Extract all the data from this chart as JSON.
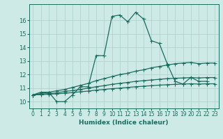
{
  "xlabel": "Humidex (Indice chaleur)",
  "bg_color": "#ceeae7",
  "grid_color": "#b0d4d0",
  "line_color": "#1a6b5e",
  "xlim": [
    -0.5,
    23.5
  ],
  "ylim": [
    9.5,
    17.2
  ],
  "xticks": [
    0,
    1,
    2,
    3,
    4,
    5,
    6,
    7,
    8,
    9,
    10,
    11,
    12,
    13,
    14,
    15,
    16,
    17,
    18,
    19,
    20,
    21,
    22,
    23
  ],
  "yticks": [
    10,
    11,
    12,
    13,
    14,
    15,
    16
  ],
  "line1_x": [
    0,
    1,
    2,
    3,
    4,
    5,
    6,
    7,
    8,
    9,
    10,
    11,
    12,
    13,
    14,
    15,
    16,
    17,
    18,
    19,
    20,
    21,
    22
  ],
  "line1_y": [
    10.5,
    10.7,
    10.7,
    10.0,
    10.0,
    10.5,
    11.1,
    11.1,
    13.4,
    13.4,
    16.3,
    16.4,
    15.9,
    16.6,
    16.1,
    14.5,
    14.3,
    12.8,
    11.5,
    11.3,
    11.8,
    11.5,
    11.5
  ],
  "line2_x": [
    0,
    1,
    2,
    3,
    4,
    5,
    6,
    7,
    8,
    9,
    10,
    11,
    12,
    13,
    14,
    15,
    16,
    17,
    18,
    19,
    20,
    21,
    22,
    23
  ],
  "line2_y": [
    10.5,
    10.6,
    10.7,
    10.8,
    10.9,
    11.05,
    11.2,
    11.35,
    11.55,
    11.7,
    11.85,
    12.0,
    12.1,
    12.25,
    12.35,
    12.5,
    12.6,
    12.7,
    12.8,
    12.85,
    12.9,
    12.8,
    12.85,
    12.85
  ],
  "line3_x": [
    0,
    1,
    2,
    3,
    4,
    5,
    6,
    7,
    8,
    9,
    10,
    11,
    12,
    13,
    14,
    15,
    16,
    17,
    18,
    19,
    20,
    21,
    22,
    23
  ],
  "line3_y": [
    10.5,
    10.55,
    10.6,
    10.65,
    10.75,
    10.82,
    10.9,
    11.0,
    11.1,
    11.18,
    11.28,
    11.35,
    11.42,
    11.5,
    11.55,
    11.6,
    11.65,
    11.7,
    11.73,
    11.75,
    11.78,
    11.75,
    11.78,
    11.78
  ],
  "line4_x": [
    0,
    1,
    2,
    3,
    4,
    5,
    6,
    7,
    8,
    9,
    10,
    11,
    12,
    13,
    14,
    15,
    16,
    17,
    18,
    19,
    20,
    21,
    22,
    23
  ],
  "line4_y": [
    10.5,
    10.52,
    10.55,
    10.58,
    10.62,
    10.67,
    10.73,
    10.78,
    10.85,
    10.9,
    10.96,
    11.0,
    11.05,
    11.1,
    11.14,
    11.18,
    11.22,
    11.25,
    11.28,
    11.3,
    11.32,
    11.3,
    11.32,
    11.32
  ]
}
